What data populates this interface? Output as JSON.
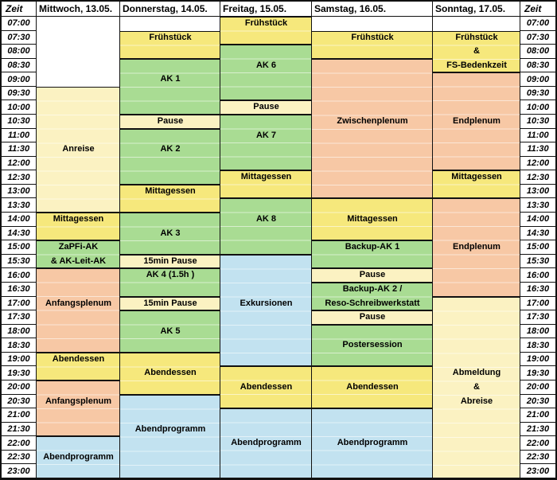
{
  "colors": {
    "meal": "#F6E87C",
    "light": "#FBF2C2",
    "ak": "#A9DC93",
    "plenum": "#F7C8A5",
    "program": "#C2E2F0"
  },
  "header": {
    "time_left": "Zeit",
    "time_right": "Zeit",
    "days": [
      "Mittwoch, 13.05.",
      "Donnerstag, 14.05.",
      "Freitag, 15.05.",
      "Samstag, 16.05.",
      "Sonntag, 17.05."
    ]
  },
  "times": [
    "07:00",
    "07:30",
    "08:00",
    "08:30",
    "09:00",
    "09:30",
    "10:00",
    "10:30",
    "11:00",
    "11:30",
    "12:00",
    "12:30",
    "13:00",
    "13:30",
    "14:00",
    "14:30",
    "15:00",
    "15:30",
    "16:00",
    "16:30",
    "17:00",
    "17:30",
    "18:00",
    "18:30",
    "19:00",
    "19:30",
    "20:00",
    "20:30",
    "21:00",
    "21:30",
    "22:00",
    "22:30",
    "23:00"
  ],
  "events": [
    {
      "day": 0,
      "lines": [
        "Anreise"
      ],
      "start": "09:30",
      "end": "14:00",
      "kind": "light"
    },
    {
      "day": 0,
      "lines": [
        "Mittagessen"
      ],
      "start": "14:00",
      "end": "15:00",
      "kind": "meal"
    },
    {
      "day": 0,
      "lines": [
        "ZaPFi-AK",
        "& AK-Leit-AK"
      ],
      "start": "15:00",
      "end": "16:00",
      "kind": "ak"
    },
    {
      "day": 0,
      "lines": [
        "Anfangsplenum"
      ],
      "start": "16:00",
      "end": "19:00",
      "kind": "plenum"
    },
    {
      "day": 0,
      "lines": [
        "Abendessen"
      ],
      "start": "19:00",
      "end": "20:00",
      "kind": "meal"
    },
    {
      "day": 0,
      "lines": [
        "Anfangsplenum"
      ],
      "start": "20:00",
      "end": "22:00",
      "kind": "plenum"
    },
    {
      "day": 0,
      "lines": [
        "Abendprogramm"
      ],
      "start": "22:00",
      "end": "23:30",
      "kind": "program"
    },
    {
      "day": 1,
      "lines": [
        "Frühstück"
      ],
      "start": "07:30",
      "end": "08:30",
      "kind": "meal"
    },
    {
      "day": 1,
      "lines": [
        "AK 1"
      ],
      "start": "08:30",
      "end": "10:30",
      "kind": "ak"
    },
    {
      "day": 1,
      "lines": [
        "Pause"
      ],
      "start": "10:30",
      "end": "11:00",
      "kind": "light"
    },
    {
      "day": 1,
      "lines": [
        "AK 2"
      ],
      "start": "11:00",
      "end": "13:00",
      "kind": "ak"
    },
    {
      "day": 1,
      "lines": [
        "Mittagessen"
      ],
      "start": "13:00",
      "end": "14:00",
      "kind": "meal"
    },
    {
      "day": 1,
      "lines": [
        "AK 3"
      ],
      "start": "14:00",
      "end": "15:30",
      "kind": "ak"
    },
    {
      "day": 1,
      "lines": [
        "15min Pause"
      ],
      "start": "15:30",
      "end": "16:00",
      "kind": "light"
    },
    {
      "day": 1,
      "lines": [
        "AK 4 (1.5h )"
      ],
      "start": "16:00",
      "end": "17:00",
      "kind": "ak"
    },
    {
      "day": 1,
      "lines": [
        "15min Pause"
      ],
      "start": "17:00",
      "end": "17:30",
      "kind": "light"
    },
    {
      "day": 1,
      "lines": [
        "AK 5"
      ],
      "start": "17:30",
      "end": "19:00",
      "kind": "ak"
    },
    {
      "day": 1,
      "lines": [
        "Abendessen"
      ],
      "start": "19:00",
      "end": "20:30",
      "kind": "meal"
    },
    {
      "day": 1,
      "lines": [
        "Abendprogramm"
      ],
      "start": "20:30",
      "end": "23:30",
      "kind": "program"
    },
    {
      "day": 2,
      "lines": [
        "Frühstück"
      ],
      "start": "07:00",
      "end": "08:00",
      "kind": "meal"
    },
    {
      "day": 2,
      "lines": [
        "AK 6"
      ],
      "start": "08:00",
      "end": "10:00",
      "kind": "ak"
    },
    {
      "day": 2,
      "lines": [
        "Pause"
      ],
      "start": "10:00",
      "end": "10:30",
      "kind": "light"
    },
    {
      "day": 2,
      "lines": [
        "AK 7"
      ],
      "start": "10:30",
      "end": "12:30",
      "kind": "ak"
    },
    {
      "day": 2,
      "lines": [
        "Mittagessen"
      ],
      "start": "12:30",
      "end": "13:30",
      "kind": "meal"
    },
    {
      "day": 2,
      "lines": [
        "AK 8"
      ],
      "start": "13:30",
      "end": "15:30",
      "kind": "ak"
    },
    {
      "day": 2,
      "lines": [
        "Exkursionen"
      ],
      "start": "15:30",
      "end": "19:30",
      "kind": "program"
    },
    {
      "day": 2,
      "lines": [
        "Abendessen"
      ],
      "start": "19:30",
      "end": "21:00",
      "kind": "meal"
    },
    {
      "day": 2,
      "lines": [
        "Abendprogramm"
      ],
      "start": "21:00",
      "end": "23:30",
      "kind": "program"
    },
    {
      "day": 3,
      "lines": [
        "Frühstück"
      ],
      "start": "07:30",
      "end": "08:30",
      "kind": "meal"
    },
    {
      "day": 3,
      "lines": [
        "Zwischenplenum"
      ],
      "start": "08:30",
      "end": "13:30",
      "kind": "plenum"
    },
    {
      "day": 3,
      "lines": [
        "Mittagessen"
      ],
      "start": "13:30",
      "end": "15:00",
      "kind": "meal"
    },
    {
      "day": 3,
      "lines": [
        "Backup-AK 1"
      ],
      "start": "15:00",
      "end": "16:00",
      "kind": "ak"
    },
    {
      "day": 3,
      "lines": [
        "Pause"
      ],
      "start": "16:00",
      "end": "16:30",
      "kind": "light"
    },
    {
      "day": 3,
      "lines": [
        "Backup-AK 2 /",
        "Reso-Schreibwerkstatt"
      ],
      "start": "16:30",
      "end": "17:30",
      "kind": "ak"
    },
    {
      "day": 3,
      "lines": [
        "Pause"
      ],
      "start": "17:30",
      "end": "18:00",
      "kind": "light"
    },
    {
      "day": 3,
      "lines": [
        "Postersession"
      ],
      "start": "18:00",
      "end": "19:30",
      "kind": "ak"
    },
    {
      "day": 3,
      "lines": [
        "Abendessen"
      ],
      "start": "19:30",
      "end": "21:00",
      "kind": "meal"
    },
    {
      "day": 3,
      "lines": [
        "Abendprogramm"
      ],
      "start": "21:00",
      "end": "23:30",
      "kind": "program"
    },
    {
      "day": 4,
      "lines": [
        "Frühstück",
        "&",
        "FS-Bedenkzeit"
      ],
      "start": "07:30",
      "end": "09:00",
      "kind": "meal"
    },
    {
      "day": 4,
      "lines": [
        "Endplenum"
      ],
      "start": "09:00",
      "end": "12:30",
      "kind": "plenum"
    },
    {
      "day": 4,
      "lines": [
        "Mittagessen"
      ],
      "start": "12:30",
      "end": "13:30",
      "kind": "meal"
    },
    {
      "day": 4,
      "lines": [
        "Endplenum"
      ],
      "start": "13:30",
      "end": "17:00",
      "kind": "plenum"
    },
    {
      "day": 4,
      "lines": [
        "Abmeldung",
        "&",
        "Abreise"
      ],
      "start": "17:00",
      "end": "23:30",
      "kind": "light"
    }
  ]
}
